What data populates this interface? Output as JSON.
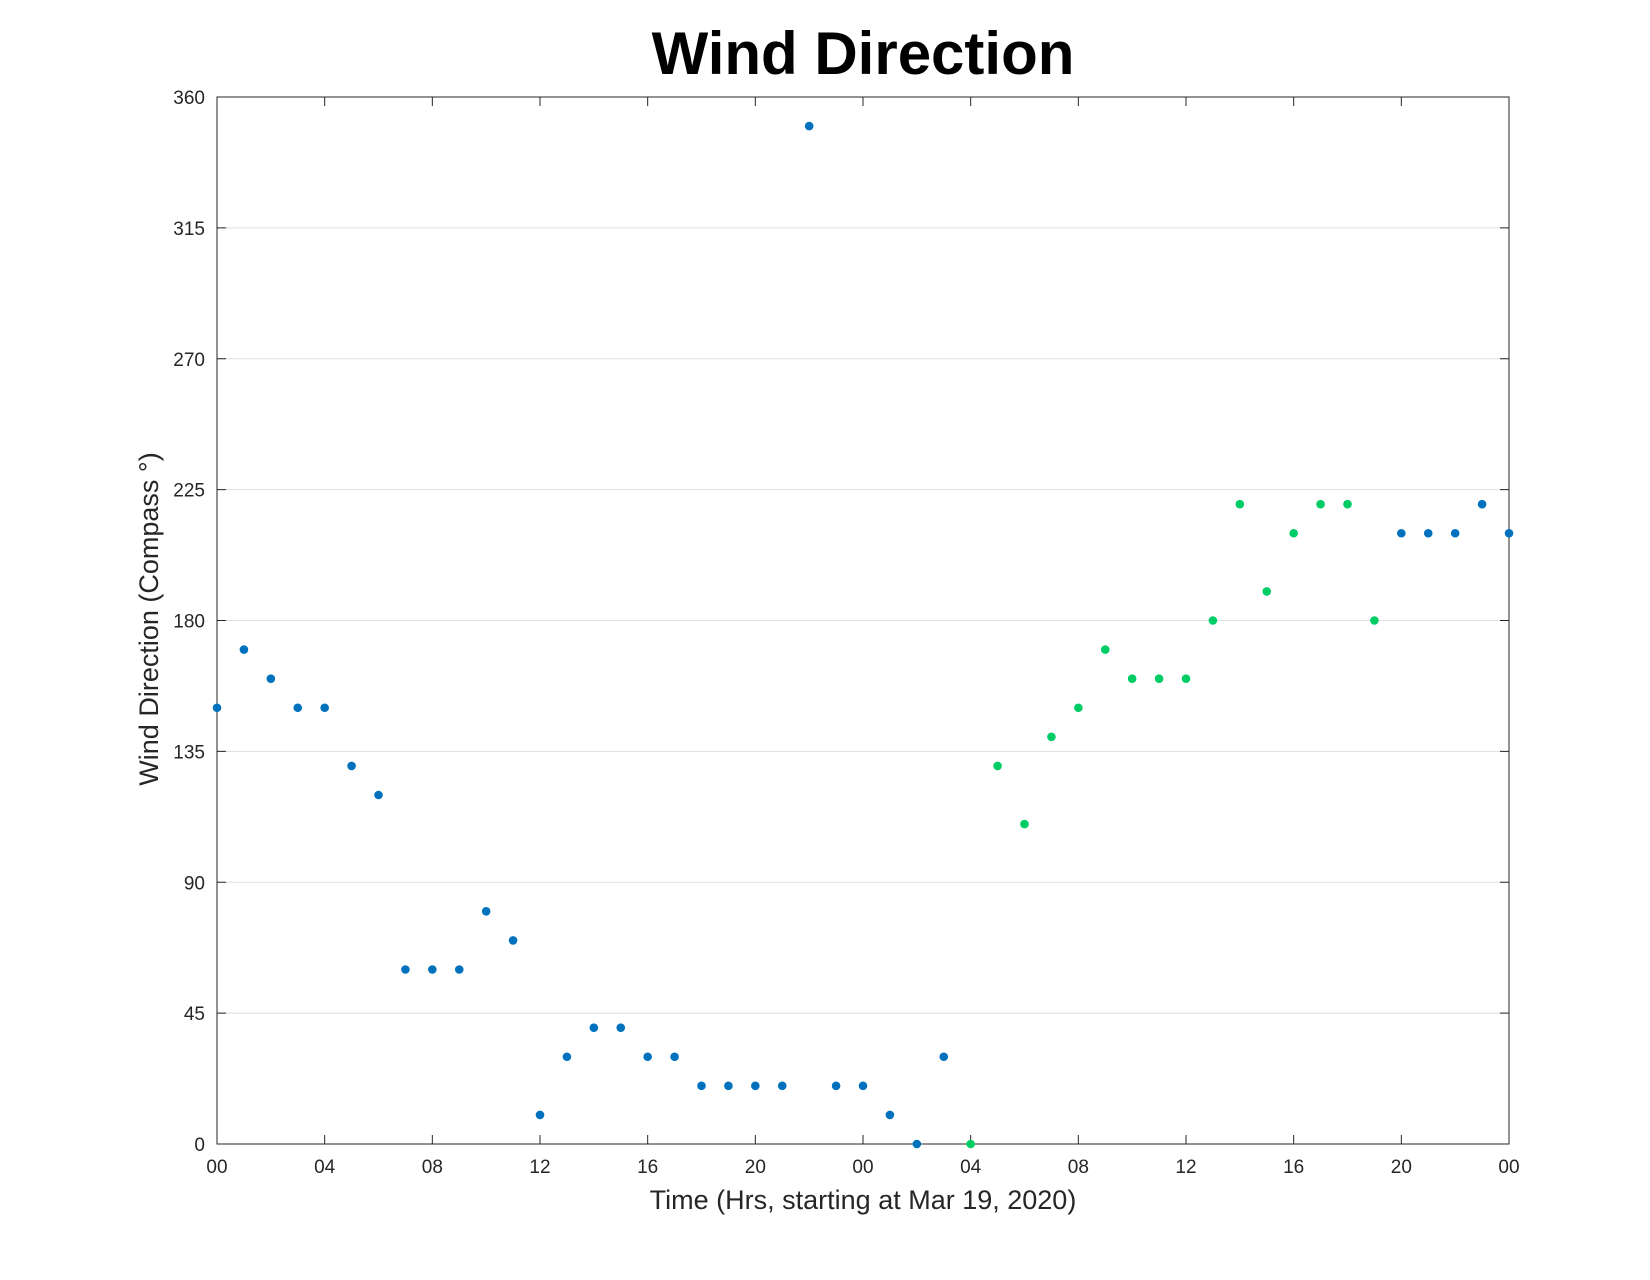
{
  "chart_data": {
    "type": "scatter",
    "title": "Wind Direction",
    "xlabel": "Time (Hrs, starting at Mar 19, 2020)",
    "ylabel": "Wind Direction (Compass °)",
    "x_unit": "hours from 00:00 Mar 19, 2020",
    "xlim": [
      0,
      48
    ],
    "ylim": [
      0,
      360
    ],
    "xticks": [
      0,
      4,
      8,
      12,
      16,
      20,
      24,
      28,
      32,
      36,
      40,
      44,
      48
    ],
    "xtick_labels": [
      "00",
      "04",
      "08",
      "12",
      "16",
      "20",
      "00",
      "04",
      "08",
      "12",
      "16",
      "20",
      "00"
    ],
    "yticks": [
      0,
      45,
      90,
      135,
      180,
      225,
      270,
      315,
      360
    ],
    "ytick_labels": [
      "0",
      "45",
      "90",
      "135",
      "180",
      "225",
      "270",
      "315",
      "360"
    ],
    "grid": "horizontal",
    "legend": "none",
    "series": [
      {
        "color": "#0072BD",
        "points": [
          [
            0,
            150
          ],
          [
            1,
            170
          ],
          [
            2,
            160
          ],
          [
            3,
            150
          ],
          [
            4,
            150
          ],
          [
            5,
            130
          ],
          [
            6,
            120
          ],
          [
            7,
            60
          ],
          [
            8,
            60
          ],
          [
            9,
            60
          ],
          [
            10,
            80
          ],
          [
            11,
            70
          ],
          [
            12,
            10
          ],
          [
            13,
            30
          ],
          [
            14,
            40
          ],
          [
            15,
            40
          ],
          [
            16,
            30
          ],
          [
            17,
            30
          ],
          [
            18,
            20
          ],
          [
            19,
            20
          ],
          [
            20,
            20
          ],
          [
            21,
            20
          ],
          [
            22,
            350
          ],
          [
            23,
            20
          ],
          [
            24,
            20
          ],
          [
            25,
            10
          ],
          [
            26,
            0
          ],
          [
            27,
            30
          ],
          [
            44,
            210
          ],
          [
            45,
            210
          ],
          [
            46,
            210
          ],
          [
            47,
            220
          ],
          [
            48,
            210
          ]
        ]
      },
      {
        "color": "#00CC66",
        "points": [
          [
            28,
            0
          ],
          [
            29,
            130
          ],
          [
            30,
            110
          ],
          [
            31,
            140
          ],
          [
            32,
            150
          ],
          [
            33,
            170
          ],
          [
            34,
            160
          ],
          [
            35,
            160
          ],
          [
            36,
            160
          ],
          [
            37,
            180
          ],
          [
            38,
            220
          ],
          [
            39,
            190
          ],
          [
            40,
            210
          ],
          [
            41,
            220
          ],
          [
            42,
            220
          ],
          [
            43,
            180
          ]
        ]
      }
    ]
  }
}
